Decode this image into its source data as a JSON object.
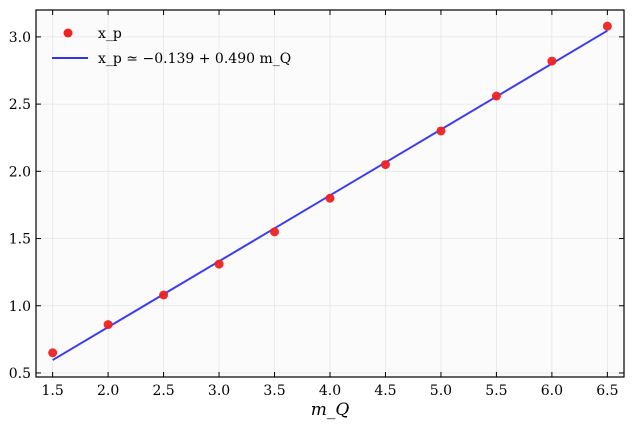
{
  "chart_data": {
    "type": "scatter",
    "xlabel": "m_Q",
    "ylabel": "",
    "xlim": [
      1.35,
      6.65
    ],
    "ylim": [
      0.47,
      3.2
    ],
    "xticks": [
      1.5,
      2.0,
      2.5,
      3.0,
      3.5,
      4.0,
      4.5,
      5.0,
      5.5,
      6.0,
      6.5
    ],
    "yticks": [
      0.5,
      1.0,
      1.5,
      2.0,
      2.5,
      3.0
    ],
    "xtick_labels": [
      "1.5",
      "2.0",
      "2.5",
      "3.0",
      "3.5",
      "4.0",
      "4.5",
      "5.0",
      "5.5",
      "6.0",
      "6.5"
    ],
    "ytick_labels": [
      "0.5",
      "1.0",
      "1.5",
      "2.0",
      "2.5",
      "3.0"
    ],
    "grid": true,
    "legend_position": "top-left",
    "series": [
      {
        "name": "x_p",
        "kind": "scatter",
        "color": "#ee2222",
        "x": [
          1.5,
          2.0,
          2.5,
          3.0,
          3.5,
          4.0,
          4.5,
          5.0,
          5.5,
          6.0,
          6.5
        ],
        "y": [
          0.65,
          0.86,
          1.08,
          1.31,
          1.55,
          1.8,
          2.05,
          2.3,
          2.56,
          2.82,
          3.08
        ]
      },
      {
        "name": "x_p ≃ −0.139 + 0.490 m_Q",
        "kind": "line",
        "color": "#3333ee",
        "intercept": -0.139,
        "slope": 0.49,
        "x_range": [
          1.5,
          6.5
        ]
      }
    ]
  }
}
